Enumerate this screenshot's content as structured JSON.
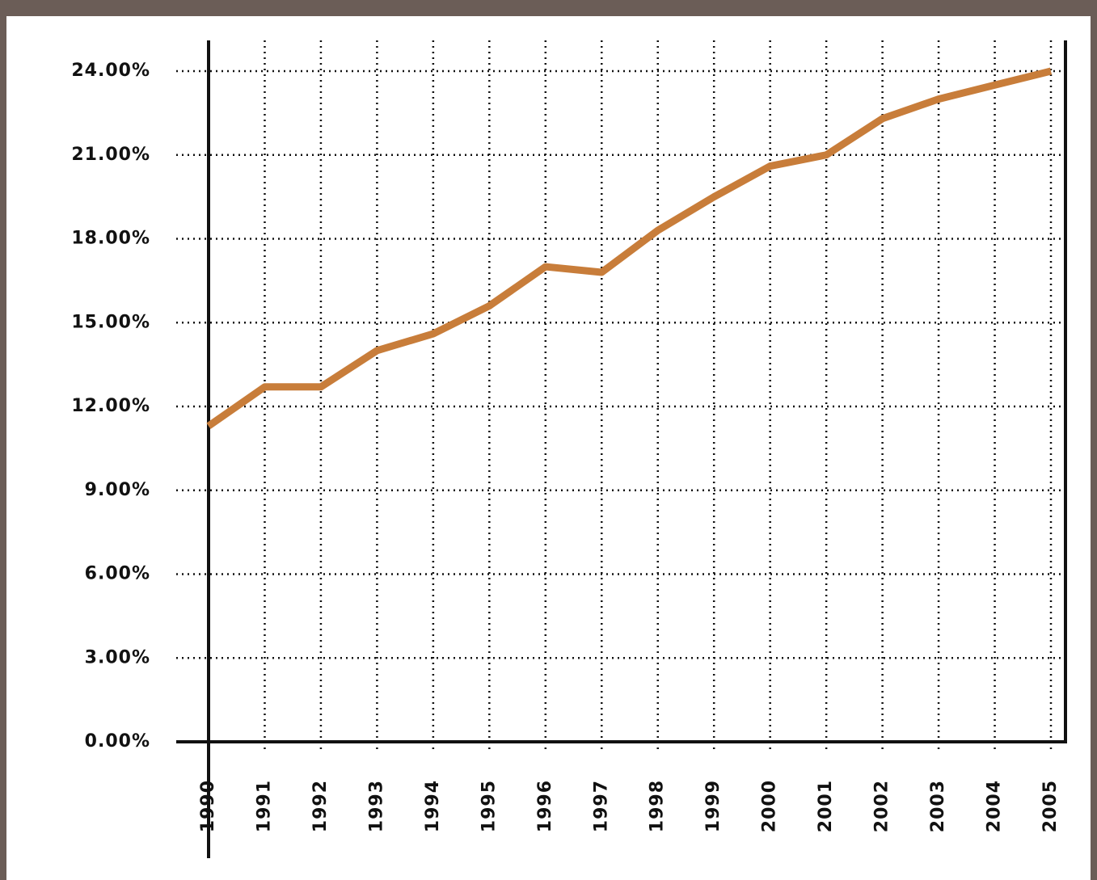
{
  "chart_data": {
    "type": "line",
    "categories": [
      "1990",
      "1991",
      "1992",
      "1993",
      "1994",
      "1995",
      "1996",
      "1997",
      "1998",
      "1999",
      "2000",
      "2001",
      "2002",
      "2003",
      "2004",
      "2005"
    ],
    "values": [
      11.3,
      12.7,
      12.7,
      14.0,
      14.6,
      15.6,
      17.0,
      16.8,
      18.3,
      19.5,
      20.6,
      21.0,
      22.3,
      23.0,
      23.5,
      24.0
    ],
    "color": "#c87d3a",
    "ylim": [
      0,
      24
    ],
    "yticks": [
      {
        "value": 0,
        "label": "0.00%"
      },
      {
        "value": 3,
        "label": "3.00%"
      },
      {
        "value": 6,
        "label": "6.00%"
      },
      {
        "value": 9,
        "label": "9.00%"
      },
      {
        "value": 12,
        "label": "12.00%"
      },
      {
        "value": 15,
        "label": "15.00%"
      },
      {
        "value": 18,
        "label": "18.00%"
      },
      {
        "value": 21,
        "label": "21.00%"
      },
      {
        "value": 24,
        "label": "24.00%"
      }
    ],
    "grid": true
  }
}
